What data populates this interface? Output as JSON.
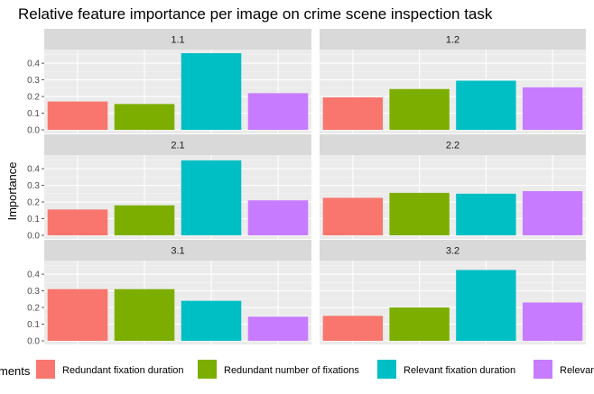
{
  "chart_data": {
    "type": "bar",
    "title": "Relative feature importance per image on crime scene inspection task",
    "ylabel": "Importance",
    "xlabel": "",
    "ylim": [
      0,
      0.46
    ],
    "yticks": [
      "0.0",
      "0.1",
      "0.2",
      "0.3",
      "0.4"
    ],
    "grid": true,
    "legend_position": "bottom",
    "legend_title": "ments",
    "categories": [
      "Redundant fixation duration",
      "Redundant number of fixations",
      "Relevant  fixation duration",
      "Relevan"
    ],
    "colors": [
      "#F8766D",
      "#7CAE00",
      "#00BFC4",
      "#C77CFF"
    ],
    "panels": [
      {
        "label": "1.1",
        "values": [
          0.17,
          0.155,
          0.46,
          0.22
        ]
      },
      {
        "label": "1.2",
        "values": [
          0.195,
          0.245,
          0.295,
          0.255
        ]
      },
      {
        "label": "2.1",
        "values": [
          0.155,
          0.18,
          0.45,
          0.21
        ]
      },
      {
        "label": "2.2",
        "values": [
          0.225,
          0.255,
          0.25,
          0.265
        ]
      },
      {
        "label": "3.1",
        "values": [
          0.31,
          0.31,
          0.24,
          0.145
        ]
      },
      {
        "label": "3.2",
        "values": [
          0.15,
          0.2,
          0.425,
          0.23
        ]
      }
    ]
  }
}
